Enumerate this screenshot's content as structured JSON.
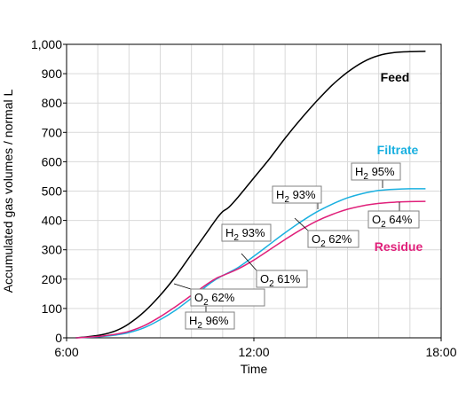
{
  "chart_data": {
    "type": "line",
    "xlabel": "Time",
    "ylabel": "Accumulated gas volumes / normal L",
    "xlim": [
      6,
      18
    ],
    "ylim": [
      0,
      1000
    ],
    "x_ticks": [
      "6:00",
      "12:00",
      "18:00"
    ],
    "y_ticks": [
      "0",
      "100",
      "200",
      "300",
      "400",
      "500",
      "600",
      "700",
      "800",
      "900",
      "1,000"
    ],
    "grid": true,
    "series": [
      {
        "name": "Feed",
        "color": "#000000",
        "x": [
          6.3,
          6.8,
          7.2,
          7.6,
          8.0,
          8.5,
          9.0,
          9.5,
          10.0,
          10.5,
          10.8,
          11.0,
          11.2,
          11.5,
          12.0,
          12.5,
          13.0,
          13.5,
          14.0,
          14.5,
          15.0,
          15.5,
          16.0,
          16.5,
          17.0,
          17.5
        ],
        "y": [
          0,
          5,
          12,
          25,
          48,
          90,
          145,
          210,
          285,
          360,
          405,
          430,
          445,
          480,
          545,
          610,
          680,
          745,
          805,
          860,
          905,
          940,
          962,
          972,
          975,
          976
        ]
      },
      {
        "name": "Filtrate",
        "color": "#1ab0e0",
        "x": [
          6.3,
          6.8,
          7.2,
          7.6,
          8.0,
          8.5,
          9.0,
          9.5,
          10.0,
          10.5,
          10.8,
          11.0,
          11.5,
          12.0,
          12.5,
          13.0,
          13.5,
          14.0,
          14.5,
          15.0,
          15.5,
          16.0,
          16.5,
          17.0,
          17.5
        ],
        "y": [
          0,
          2,
          5,
          10,
          18,
          35,
          62,
          95,
          135,
          178,
          200,
          212,
          240,
          278,
          318,
          358,
          395,
          428,
          455,
          477,
          492,
          502,
          506,
          508,
          508
        ]
      },
      {
        "name": "Residue",
        "color": "#e0207a",
        "x": [
          6.3,
          6.8,
          7.2,
          7.6,
          8.0,
          8.5,
          9.0,
          9.5,
          10.0,
          10.5,
          10.8,
          11.0,
          11.5,
          12.0,
          12.5,
          13.0,
          13.5,
          14.0,
          14.5,
          15.0,
          15.5,
          16.0,
          16.5,
          17.0,
          17.5
        ],
        "y": [
          0,
          3,
          7,
          13,
          22,
          42,
          72,
          107,
          145,
          183,
          203,
          212,
          235,
          265,
          300,
          335,
          368,
          397,
          420,
          438,
          450,
          458,
          462,
          464,
          465
        ]
      }
    ],
    "annotations": [
      {
        "main": "H",
        "sub": "2",
        "rest": " 96%"
      },
      {
        "main": "O",
        "sub": "2",
        "rest": " 62%"
      },
      {
        "main": "H",
        "sub": "2",
        "rest": " 93%"
      },
      {
        "main": "O",
        "sub": "2",
        "rest": " 61%"
      },
      {
        "main": "H",
        "sub": "2",
        "rest": " 93%"
      },
      {
        "main": "O",
        "sub": "2",
        "rest": " 62%"
      },
      {
        "main": "H",
        "sub": "2",
        "rest": " 95%"
      },
      {
        "main": "O",
        "sub": "2",
        "rest": " 64%"
      }
    ]
  }
}
